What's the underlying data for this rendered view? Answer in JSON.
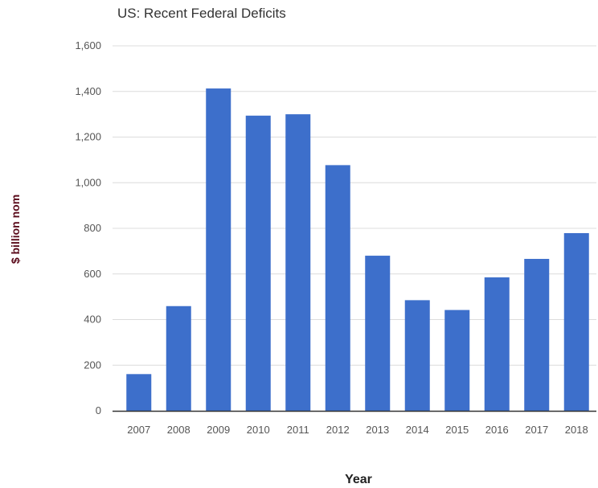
{
  "colors": {
    "bar": "#3d6fcb",
    "grid": "#dcdcdc",
    "baseline": "#333333",
    "ylabel": "#5a0a1a"
  },
  "chart_data": {
    "type": "bar",
    "title": "US: Recent Federal Deficits",
    "xlabel": "Year",
    "ylabel": "$ billion nom",
    "categories": [
      "2007",
      "2008",
      "2009",
      "2010",
      "2011",
      "2012",
      "2013",
      "2014",
      "2015",
      "2016",
      "2017",
      "2018"
    ],
    "values": [
      161,
      459,
      1413,
      1294,
      1300,
      1077,
      680,
      485,
      442,
      585,
      666,
      779
    ],
    "ylim": [
      0,
      1600
    ],
    "yticks": [
      0,
      200,
      400,
      600,
      800,
      1000,
      1200,
      1400,
      1600
    ],
    "ytick_labels": [
      "0",
      "200",
      "400",
      "600",
      "800",
      "1,000",
      "1,200",
      "1,400",
      "1,600"
    ],
    "grid": true,
    "legend": "none"
  }
}
